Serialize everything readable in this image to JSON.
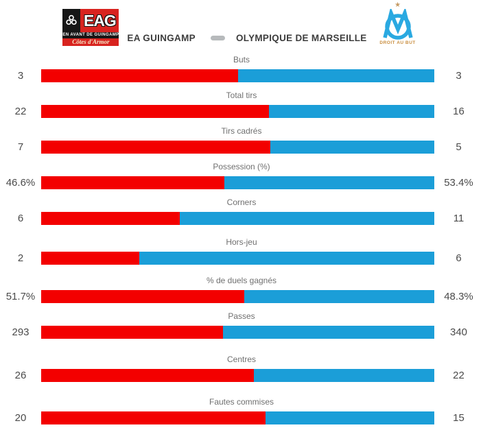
{
  "header": {
    "home_team": "EA GUINGAMP",
    "away_team": "OLYMPIQUE DE MARSEILLE",
    "home_logo": {
      "acronym": "EAG",
      "line1": "EN AVANT DE GUINGAMP",
      "line2": "Côtes d'Armor"
    },
    "away_logo": {
      "star": "★",
      "motto": "DROIT AU BUT"
    }
  },
  "colors": {
    "home_bar": "#f30000",
    "away_bar": "#1b9ed8",
    "eag_red": "#d8231f",
    "om_blue": "#2aa9e1",
    "om_gold": "#c59a63"
  },
  "stats": [
    {
      "label": "Buts",
      "home": "3",
      "away": "3"
    },
    {
      "label": "Total tirs",
      "home": "22",
      "away": "16"
    },
    {
      "label": "Tirs cadrés",
      "home": "7",
      "away": "5"
    },
    {
      "label": "Possession (%)",
      "home": "46.6%",
      "away": "53.4%"
    },
    {
      "label": "Corners",
      "home": "6",
      "away": "11"
    },
    {
      "label": "Hors-jeu",
      "home": "2",
      "away": "6"
    },
    {
      "label": "% de duels gagnés",
      "home": "51.7%",
      "away": "48.3%"
    },
    {
      "label": "Passes",
      "home": "293",
      "away": "340"
    },
    {
      "label": "Centres",
      "home": "26",
      "away": "22"
    },
    {
      "label": "Fautes commises",
      "home": "20",
      "away": "15"
    }
  ],
  "chart_data": {
    "type": "bar",
    "orientation": "horizontal-paired",
    "title": "EA GUINGAMP vs OLYMPIQUE DE MARSEILLE",
    "categories": [
      "Buts",
      "Total tirs",
      "Tirs cadrés",
      "Possession (%)",
      "Corners",
      "Hors-jeu",
      "% de duels gagnés",
      "Passes",
      "Centres",
      "Fautes commises"
    ],
    "series": [
      {
        "name": "EA Guingamp",
        "color": "#f30000",
        "values": [
          3,
          22,
          7,
          46.6,
          6,
          2,
          51.7,
          293,
          26,
          20
        ]
      },
      {
        "name": "Olympique de Marseille",
        "color": "#1b9ed8",
        "values": [
          3,
          16,
          5,
          53.4,
          11,
          6,
          48.3,
          340,
          22,
          15
        ]
      }
    ],
    "bar_split_rule": "home_segment_fraction = home / (home + away)",
    "legend_position": "header",
    "grid": false
  }
}
